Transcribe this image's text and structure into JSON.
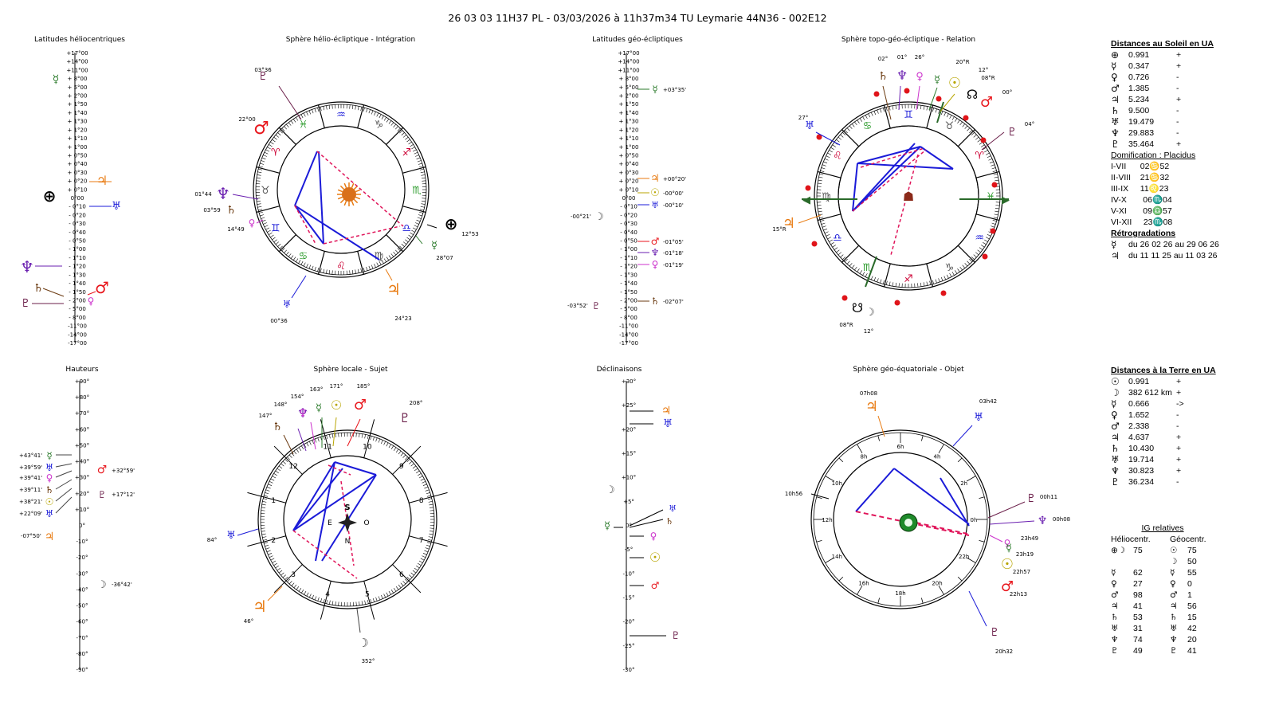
{
  "title": "26 03 03 11H37 PL   -  03/03/2026 à 11h37m34 TU  Leymarie  44N36 - 002E12",
  "colors": {
    "mercury": "#2a7a2a",
    "venus": "#cc33cc",
    "mars": "#e8161c",
    "jupiter": "#e87a10",
    "saturn": "#6b3a10",
    "uranus": "#1b1bd8",
    "neptune": "#6a1fb0",
    "pluto": "#6b1f4a",
    "sun": "#b8a500",
    "moon": "#444444",
    "earth": "#000000",
    "line_blue": "#1b1bd8",
    "line_red": "#e0155a"
  },
  "glyphs": {
    "earth": "⊕",
    "sun": "☉",
    "moon": "☽",
    "mercury": "☿",
    "venus": "♀",
    "mars": "♂",
    "jupiter": "♃",
    "saturn": "♄",
    "uranus": "♅",
    "neptune": "♆",
    "pluto": "♇",
    "node": "☊",
    "node_s": "☋"
  },
  "charts": {
    "lat_helio": {
      "title": "Latitudes héliocentriques",
      "ticks": [
        "+17°00",
        "+14°00",
        "+11°00",
        "+ 8°00",
        "+ 5°00",
        "+ 2°00",
        "+ 1°50",
        "+ 1°40",
        "+ 1°30",
        "+ 1°20",
        "+ 1°10",
        "+ 1°00",
        "+ 0°50",
        "+ 0°40",
        "+ 0°30",
        "+ 0°20",
        "+ 0°10",
        "0°00",
        "- 0°10",
        "- 0°20",
        "- 0°30",
        "- 0°40",
        "- 0°50",
        "- 1°00",
        "- 1°10",
        "- 1°20",
        "- 1°30",
        "- 1°40",
        "- 1°50",
        "- 2°00",
        "- 5°00",
        "- 8°00",
        "-11°00",
        "-14°00",
        "-17°00"
      ]
    },
    "sphere_helio": {
      "title": "Sphère hélio-écliptique - Intégration",
      "labels": [
        "03°36",
        "22°00",
        "01°44",
        "03°59",
        "14°49",
        "12°53",
        "28°07",
        "00°36",
        "24°23"
      ]
    },
    "lat_geo": {
      "title": "Latitudes géo-écliptiques",
      "labels": [
        "+03°35'",
        "+00°20'",
        "-00°00'",
        "-00°10'",
        "-00°21'",
        "-01°05'",
        "-01°18'",
        "-01°19'",
        "-03°52'",
        "-02°07'"
      ]
    },
    "sphere_topo": {
      "title": "Sphère topo-géo-écliptique - Relation",
      "labels": [
        "02°",
        "01°",
        "26°",
        "20°R",
        "12°",
        "08°R",
        "00°",
        "27°",
        "04°",
        "15°R",
        "08°R",
        "12°"
      ]
    },
    "hauteurs": {
      "title": "Hauteurs",
      "ticks": [
        "+90°",
        "+80°",
        "+70°",
        "+60°",
        "+50°",
        "+40°",
        "+30°",
        "+20°",
        "+10°",
        "0°",
        "-10°",
        "-20°",
        "-30°",
        "-40°",
        "-50°",
        "-60°",
        "-70°",
        "-80°",
        "-90°"
      ],
      "labels": [
        "+43°41'",
        "+39°59'",
        "+39°41'",
        "+39°11'",
        "+38°21'",
        "+22°09'",
        "+32°59'",
        "+17°12'",
        "-07°50'",
        "-36°42'"
      ]
    },
    "sphere_locale": {
      "title": "Sphère locale - Sujet",
      "labels": [
        "147°",
        "148°",
        "154°",
        "163°",
        "171°",
        "185°",
        "208°",
        "84°",
        "46°",
        "352°"
      ],
      "compass": [
        "S",
        "E",
        "O",
        "N"
      ]
    },
    "declinaisons": {
      "title": "Déclinaisons",
      "ticks": [
        "+30°",
        "+25°",
        "+20°",
        "+15°",
        "+10°",
        "+5°",
        "0°",
        "-5°",
        "-10°",
        "-15°",
        "-20°",
        "-25°",
        "-30°"
      ]
    },
    "sphere_equat": {
      "title": "Sphère géo-équatoriale - Objet",
      "labels": [
        "07h08",
        "03h42",
        "10h56",
        "00h11",
        "00h08",
        "23h49",
        "23h19",
        "22h57",
        "22h13",
        "20h32"
      ],
      "hours": [
        "6h",
        "4h",
        "2h",
        "0h",
        "22h",
        "20h",
        "18h",
        "16h",
        "14h",
        "12h",
        "10h",
        "8h"
      ]
    }
  },
  "zodiac": [
    "♑",
    "♐",
    "♏",
    "♎",
    "♍",
    "♌",
    "♋",
    "♊",
    "♉",
    "♈",
    "♓",
    "♒"
  ],
  "dist_sun": {
    "title": "Distances au Soleil en UA",
    "rows": [
      {
        "g": "⊕",
        "v": "0.991",
        "s": "+"
      },
      {
        "g": "☿",
        "v": "0.347",
        "s": "+"
      },
      {
        "g": "♀",
        "v": "0.726",
        "s": "-"
      },
      {
        "g": "♂",
        "v": "1.385",
        "s": "-"
      },
      {
        "g": "♃",
        "v": "5.234",
        "s": "+"
      },
      {
        "g": "♄",
        "v": "9.500",
        "s": "-"
      },
      {
        "g": "♅",
        "v": "19.479",
        "s": "-"
      },
      {
        "g": "♆",
        "v": "29.883",
        "s": "-"
      },
      {
        "g": "♇",
        "v": "35.464",
        "s": "+"
      }
    ],
    "dom_title": "Domification : Placidus",
    "dom": [
      "I-VII      02♋52",
      "II-VIII    21♋32",
      "III-IX     11♌23",
      "IV-X       06♏04",
      "V-XI       09♎57",
      "VI-XII     23♏08"
    ],
    "retro_title": "Rétrogradations",
    "retro": [
      {
        "g": "☿",
        "t": "du 26 02 26 au 29 06 26"
      },
      {
        "g": "♃",
        "t": "du 11 11 25 au 11 03 26"
      }
    ]
  },
  "dist_earth": {
    "title": "Distances à la Terre en UA",
    "rows": [
      {
        "g": "☉",
        "v": "0.991",
        "s": "+"
      },
      {
        "g": "☽",
        "v": "382 612 km",
        "s": "+"
      },
      {
        "g": "☿",
        "v": "0.666",
        "s": "->"
      },
      {
        "g": "♀",
        "v": "1.652",
        "s": "-"
      },
      {
        "g": "♂",
        "v": "2.338",
        "s": "-"
      },
      {
        "g": "♃",
        "v": "4.637",
        "s": "+"
      },
      {
        "g": "♄",
        "v": "10.430",
        "s": "+"
      },
      {
        "g": "♅",
        "v": "19.714",
        "s": "+"
      },
      {
        "g": "♆",
        "v": "30.823",
        "s": "+"
      },
      {
        "g": "♇",
        "v": "36.234",
        "s": "-"
      }
    ]
  },
  "ig": {
    "title": "IG relatives",
    "col1": "Héliocentr.",
    "col2": "Géocentr.",
    "rows": [
      {
        "g1": "⊕☽",
        "v1": "75",
        "g2": "☉",
        "v2": "75"
      },
      {
        "g1": "",
        "v1": "",
        "g2": "☽",
        "v2": "50"
      },
      {
        "g1": "☿",
        "v1": "62",
        "g2": "☿",
        "v2": "55"
      },
      {
        "g1": "♀",
        "v1": "27",
        "g2": "♀",
        "v2": "0"
      },
      {
        "g1": "♂",
        "v1": "98",
        "g2": "♂",
        "v2": "1"
      },
      {
        "g1": "♃",
        "v1": "41",
        "g2": "♃",
        "v2": "56"
      },
      {
        "g1": "♄",
        "v1": "53",
        "g2": "♄",
        "v2": "15"
      },
      {
        "g1": "♅",
        "v1": "31",
        "g2": "♅",
        "v2": "42"
      },
      {
        "g1": "♆",
        "v1": "74",
        "g2": "♆",
        "v2": "20"
      },
      {
        "g1": "♇",
        "v1": "49",
        "g2": "♇",
        "v2": "41"
      }
    ]
  }
}
